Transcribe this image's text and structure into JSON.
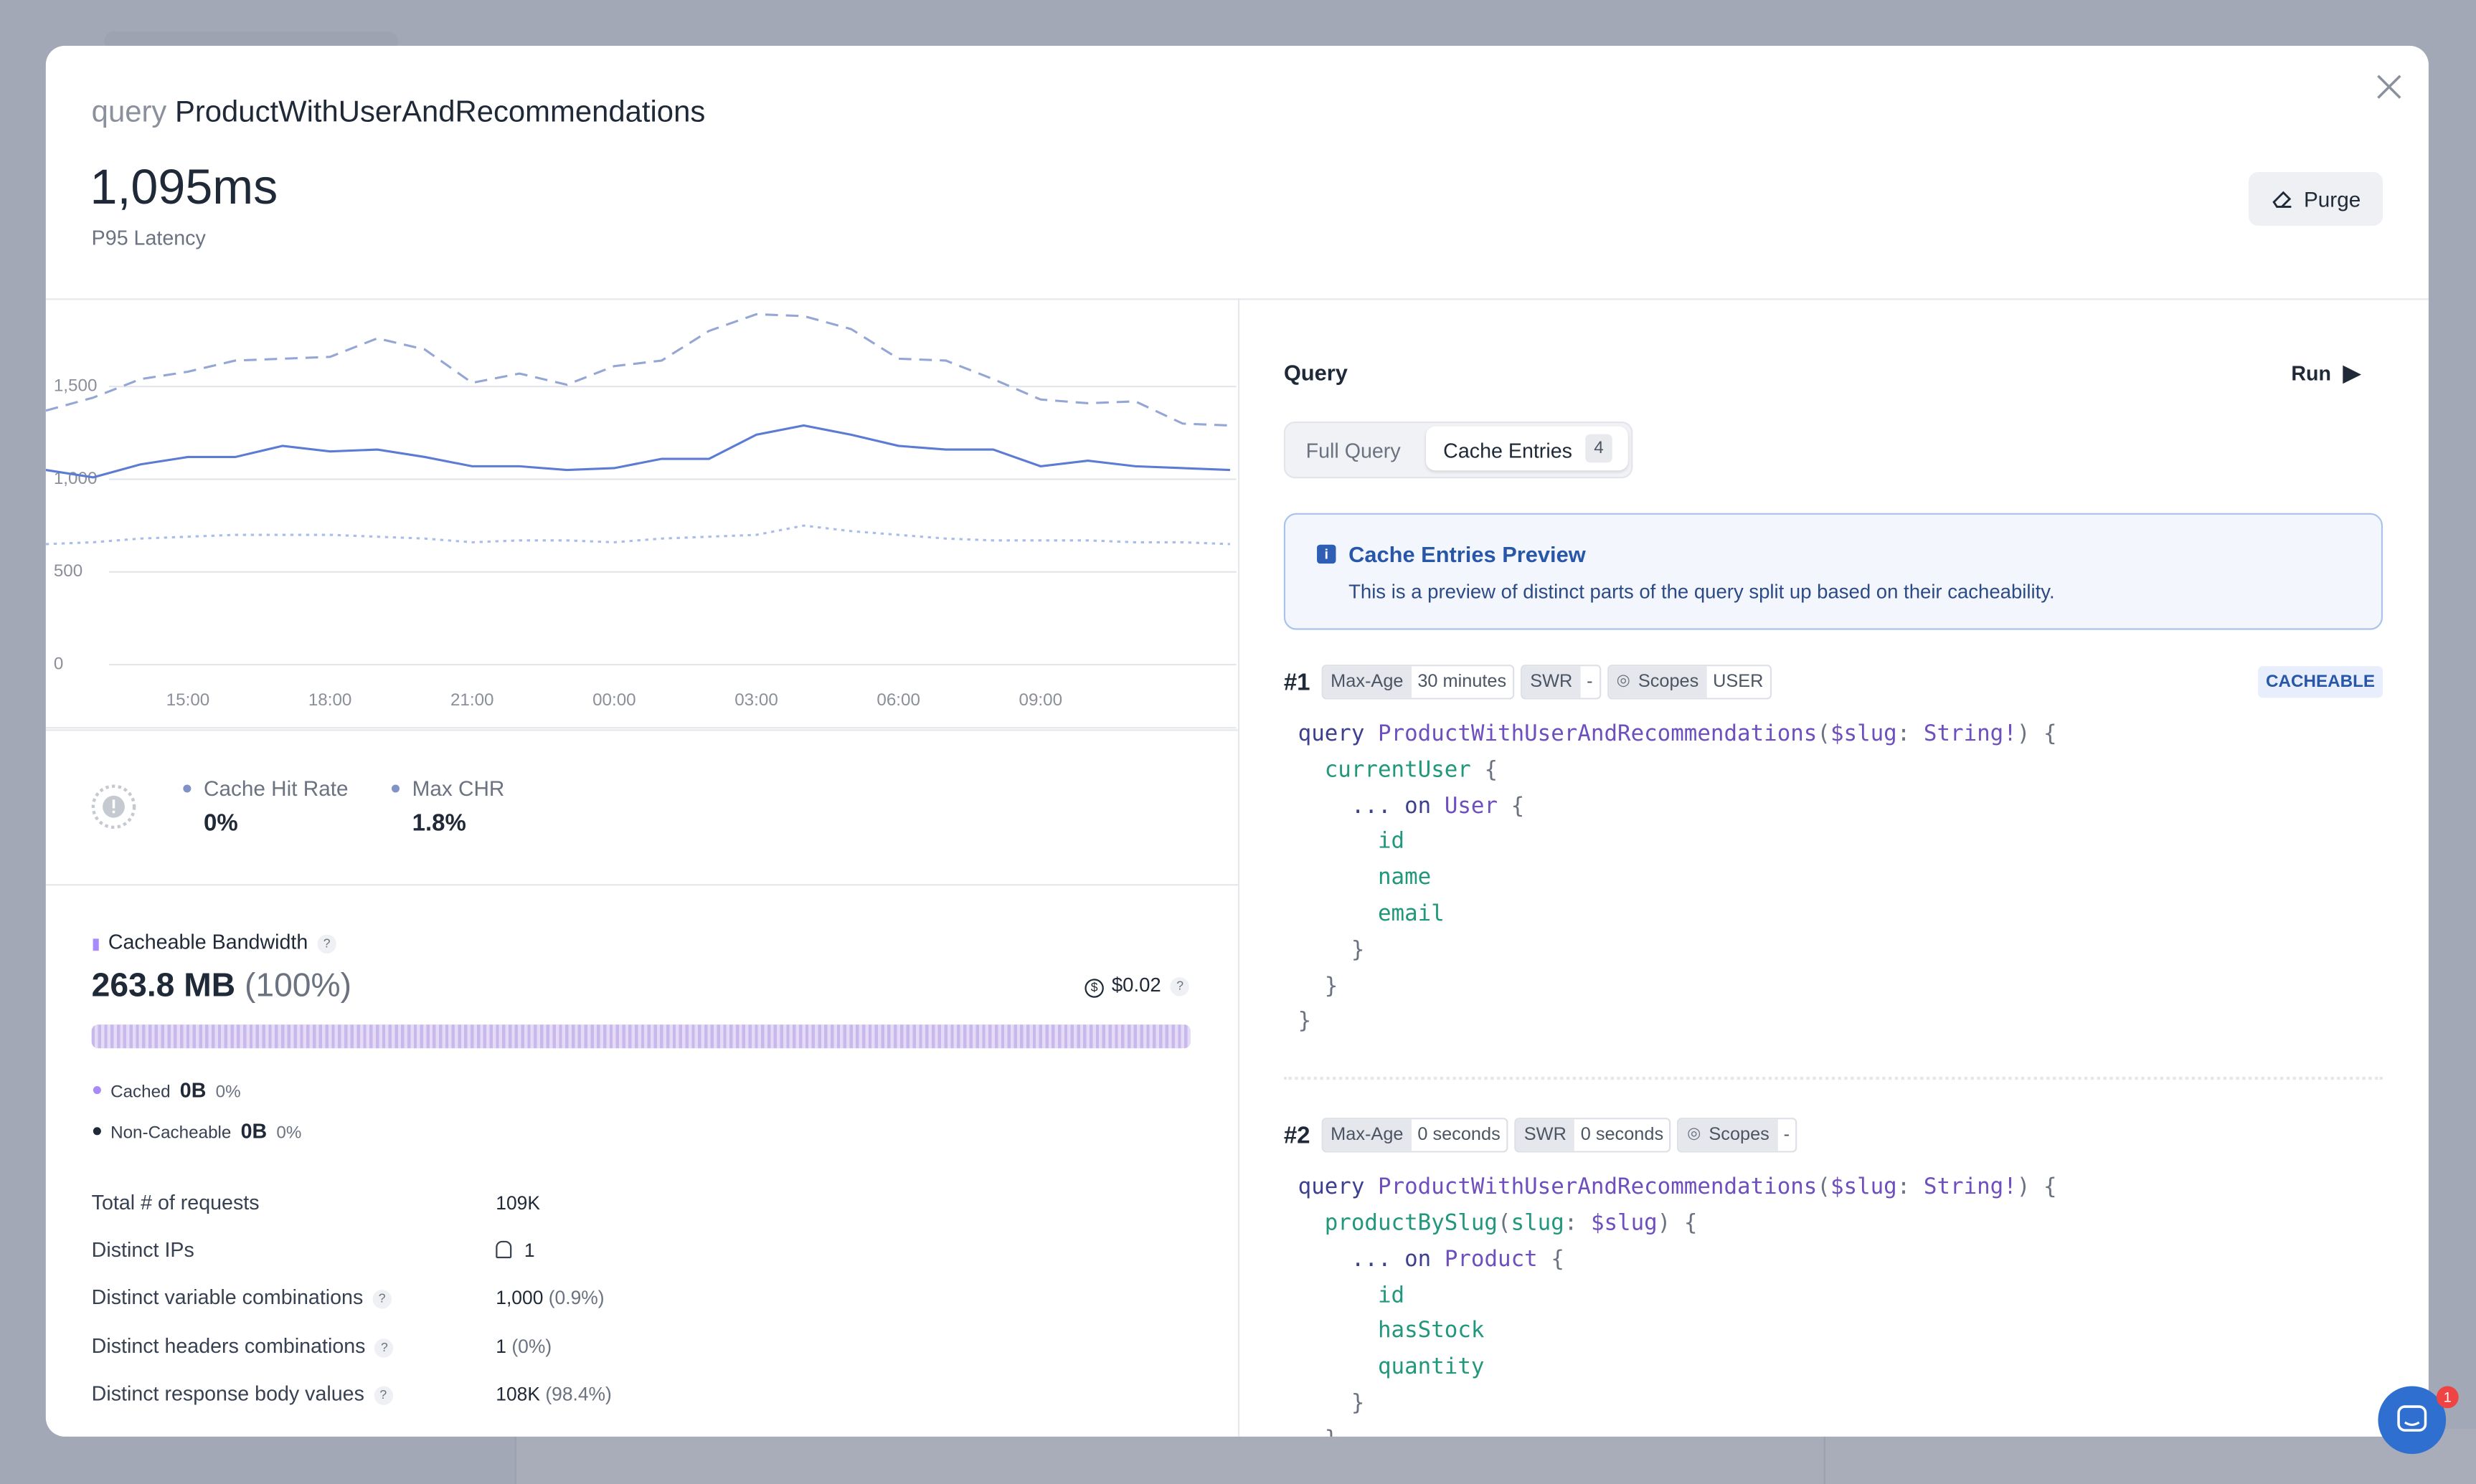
{
  "header": {
    "keyword": "query",
    "operation": "ProductWithUserAndRecommendations",
    "latency": "1,095ms",
    "latency_label": "P95 Latency",
    "purge": "Purge"
  },
  "chart_data": {
    "type": "line",
    "categories": [
      null,
      null,
      null,
      "15:00",
      null,
      null,
      "18:00",
      null,
      null,
      "21:00",
      null,
      null,
      "00:00",
      null,
      null,
      "03:00",
      null,
      null,
      "06:00",
      null,
      null,
      "09:00",
      null,
      null,
      null,
      null
    ],
    "ylim": [
      0,
      1967
    ],
    "yticks": [
      0,
      500,
      {
        "value": 1000,
        "label": "1,000"
      },
      {
        "value": 1500,
        "label": "1,500"
      }
    ],
    "grid": true,
    "series": [
      {
        "color": "#94a6d6",
        "style": "dashed",
        "values": [
          1370,
          1440,
          1540,
          1580,
          1640,
          1650,
          1660,
          1760,
          1700,
          1520,
          1570,
          1510,
          1610,
          1640,
          1800,
          1890,
          1880,
          1810,
          1650,
          1640,
          1540,
          1430,
          1410,
          1420,
          1300,
          1290
        ]
      },
      {
        "color": "#5b7bd5",
        "style": "solid",
        "values": [
          1050,
          1010,
          1080,
          1120,
          1120,
          1180,
          1150,
          1160,
          1120,
          1070,
          1070,
          1050,
          1060,
          1110,
          1110,
          1240,
          1290,
          1240,
          1180,
          1160,
          1160,
          1070,
          1100,
          1070,
          1060,
          1050
        ]
      },
      {
        "color": "#aabde8",
        "style": "dotted",
        "values": [
          650,
          660,
          680,
          690,
          700,
          700,
          700,
          690,
          680,
          660,
          670,
          670,
          660,
          680,
          690,
          700,
          750,
          720,
          700,
          680,
          670,
          670,
          670,
          660,
          660,
          650
        ]
      }
    ]
  },
  "cache_hit": {
    "metrics": [
      {
        "label": "Cache Hit Rate",
        "value": "0%"
      },
      {
        "label": "Max CHR",
        "value": "1.8%"
      }
    ]
  },
  "bandwidth": {
    "title": "Cacheable Bandwidth",
    "help": "?",
    "total": "263.8 MB",
    "share": "(100%)",
    "cost": "$0.02",
    "legend": [
      {
        "label": "Cached",
        "value": "0B",
        "share": "0%"
      },
      {
        "label": "Non-Cacheable",
        "value": "0B",
        "share": "0%"
      }
    ]
  },
  "stats": [
    {
      "label": "Total # of requests",
      "value": "109K"
    },
    {
      "label": "Distinct IPs",
      "value": "1"
    },
    {
      "label": "Distinct variable combinations",
      "help": "?",
      "value": "1,000",
      "share": "(0.9%)"
    },
    {
      "label": "Distinct headers combinations",
      "help": "?",
      "value": "1",
      "share": "(0%)"
    },
    {
      "label": "Distinct response body values",
      "help": "?",
      "value": "108K",
      "share": "(98.4%)"
    }
  ],
  "query_panel": {
    "title": "Query",
    "run": "Run",
    "tabs": [
      {
        "label": "Full Query"
      },
      {
        "label": "Cache Entries",
        "count": "4"
      }
    ],
    "info": {
      "title": "Cache Entries Preview",
      "text": "This is a preview of distinct parts of the query split up based on their cacheability."
    },
    "entries": [
      {
        "index": "#1",
        "tags": [
          {
            "label": "Max-Age",
            "value": "30 minutes"
          },
          {
            "label": "SWR",
            "value": "-"
          },
          {
            "label": "Scopes",
            "value": "USER"
          }
        ],
        "status": "CACHEABLE",
        "code": [
          "query ProductWithUserAndRecommendations($slug: String!) {",
          "  currentUser {",
          "    ... on User {",
          "      id",
          "      name",
          "      email",
          "    }",
          "  }",
          "}"
        ]
      },
      {
        "index": "#2",
        "tags": [
          {
            "label": "Max-Age",
            "value": "0 seconds"
          },
          {
            "label": "SWR",
            "value": "0 seconds"
          },
          {
            "label": "Scopes",
            "value": "-"
          }
        ],
        "code": [
          "query ProductWithUserAndRecommendations($slug: String!) {",
          "  productBySlug(slug: $slug) {",
          "    ... on Product {",
          "      id",
          "      hasStock",
          "      quantity",
          "    }",
          "  }",
          "}"
        ]
      }
    ]
  },
  "chat_badge": "1"
}
